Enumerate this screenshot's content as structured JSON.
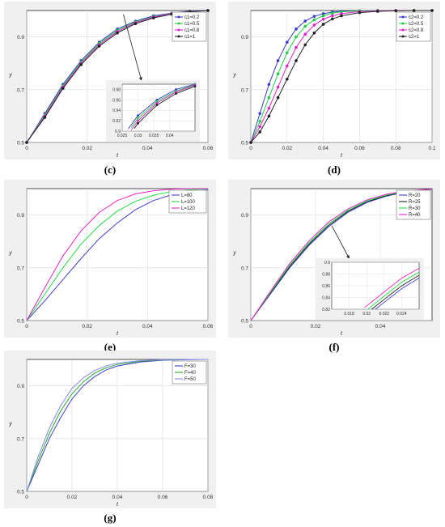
{
  "panels": [
    {
      "id": "c",
      "caption": "(c)",
      "chart_data": {
        "type": "line",
        "xlabel": "t",
        "ylabel": "y",
        "xlim": [
          0,
          0.06
        ],
        "ylim": [
          0.5,
          1.0
        ],
        "xticks": [
          "0",
          "0.02",
          "0.04",
          "0.06"
        ],
        "yticks": [
          "0.5",
          "0.7",
          "0.9"
        ],
        "grid": true,
        "legend_position": "top-right",
        "markers": true,
        "series": [
          {
            "name": "c1=0.2",
            "color": "#3a3acc",
            "x": [
              0,
              0.006,
              0.012,
              0.018,
              0.024,
              0.03,
              0.036,
              0.042,
              0.048,
              0.054,
              0.06
            ],
            "y": [
              0.5,
              0.61,
              0.72,
              0.81,
              0.88,
              0.93,
              0.96,
              0.98,
              0.99,
              0.998,
              1.0
            ]
          },
          {
            "name": "c1=0.5",
            "color": "#22cc44",
            "x": [
              0,
              0.006,
              0.012,
              0.018,
              0.024,
              0.03,
              0.036,
              0.042,
              0.048,
              0.054,
              0.06
            ],
            "y": [
              0.5,
              0.605,
              0.715,
              0.805,
              0.875,
              0.925,
              0.957,
              0.977,
              0.989,
              0.997,
              1.0
            ]
          },
          {
            "name": "c1=0.8",
            "color": "#dd22cc",
            "x": [
              0,
              0.006,
              0.012,
              0.018,
              0.024,
              0.03,
              0.036,
              0.042,
              0.048,
              0.054,
              0.06
            ],
            "y": [
              0.5,
              0.6,
              0.71,
              0.8,
              0.87,
              0.92,
              0.954,
              0.975,
              0.988,
              0.996,
              1.0
            ]
          },
          {
            "name": "c1=1",
            "color": "#222222",
            "x": [
              0,
              0.006,
              0.012,
              0.018,
              0.024,
              0.03,
              0.036,
              0.042,
              0.048,
              0.054,
              0.06
            ],
            "y": [
              0.5,
              0.595,
              0.705,
              0.795,
              0.865,
              0.915,
              0.95,
              0.972,
              0.986,
              0.995,
              1.0
            ]
          }
        ],
        "inset": {
          "xlim": [
            0.025,
            0.048
          ],
          "ylim": [
            0.9,
            0.99
          ],
          "xticks": [
            "0.025",
            "0.03",
            "0.035",
            "0.04"
          ],
          "yticks": [
            "0.9",
            "0.92",
            "0.94",
            "0.96",
            "0.98"
          ]
        }
      }
    },
    {
      "id": "d",
      "caption": "(d)",
      "chart_data": {
        "type": "line",
        "xlabel": "t",
        "ylabel": "y",
        "xlim": [
          0,
          0.1
        ],
        "ylim": [
          0.5,
          1.0
        ],
        "xticks": [
          "0",
          "0.02",
          "0.04",
          "0.06",
          "0.08",
          "0.1"
        ],
        "yticks": [
          "0.5",
          "0.7",
          "0.9"
        ],
        "grid": true,
        "legend_position": "top-right",
        "markers": true,
        "series": [
          {
            "name": "c2=0.2",
            "color": "#3a3acc",
            "x": [
              0,
              0.005,
              0.01,
              0.015,
              0.02,
              0.025,
              0.03,
              0.035,
              0.04,
              0.045,
              0.05,
              0.06,
              0.07,
              0.08,
              0.09,
              0.1
            ],
            "y": [
              0.5,
              0.61,
              0.72,
              0.81,
              0.88,
              0.93,
              0.96,
              0.978,
              0.988,
              0.994,
              0.997,
              0.999,
              1.0,
              1.0,
              1.0,
              1.0
            ]
          },
          {
            "name": "c2=0.5",
            "color": "#22cc44",
            "x": [
              0,
              0.005,
              0.01,
              0.015,
              0.02,
              0.025,
              0.03,
              0.035,
              0.04,
              0.045,
              0.05,
              0.06,
              0.07,
              0.08,
              0.09,
              0.1
            ],
            "y": [
              0.5,
              0.58,
              0.67,
              0.76,
              0.84,
              0.9,
              0.94,
              0.965,
              0.98,
              0.99,
              0.995,
              0.999,
              1.0,
              1.0,
              1.0,
              1.0
            ]
          },
          {
            "name": "c2=0.8",
            "color": "#dd22cc",
            "x": [
              0,
              0.005,
              0.01,
              0.015,
              0.02,
              0.025,
              0.03,
              0.035,
              0.04,
              0.045,
              0.05,
              0.06,
              0.07,
              0.08,
              0.09,
              0.1
            ],
            "y": [
              0.5,
              0.56,
              0.63,
              0.71,
              0.79,
              0.86,
              0.91,
              0.945,
              0.967,
              0.98,
              0.988,
              0.996,
              0.999,
              1.0,
              1.0,
              1.0
            ]
          },
          {
            "name": "c2=1",
            "color": "#222222",
            "x": [
              0,
              0.005,
              0.01,
              0.015,
              0.02,
              0.025,
              0.03,
              0.035,
              0.04,
              0.045,
              0.05,
              0.06,
              0.07,
              0.08,
              0.09,
              0.1
            ],
            "y": [
              0.5,
              0.54,
              0.6,
              0.67,
              0.74,
              0.81,
              0.87,
              0.915,
              0.948,
              0.968,
              0.98,
              0.992,
              0.997,
              0.999,
              1.0,
              1.0
            ]
          }
        ]
      }
    },
    {
      "id": "e",
      "caption": "(e)",
      "chart_data": {
        "type": "line",
        "xlabel": "t",
        "ylabel": "y",
        "xlim": [
          0,
          0.06
        ],
        "ylim": [
          0.5,
          1.0
        ],
        "xticks": [
          "0",
          "0.02",
          "0.04",
          "0.06"
        ],
        "yticks": [
          "0.5",
          "0.7",
          "0.9"
        ],
        "grid": true,
        "legend_position": "top-right",
        "markers": false,
        "series": [
          {
            "name": "L=80",
            "color": "#4040cc",
            "x": [
              0,
              0.006,
              0.012,
              0.018,
              0.024,
              0.03,
              0.036,
              0.042,
              0.048,
              0.054,
              0.06
            ],
            "y": [
              0.5,
              0.575,
              0.655,
              0.735,
              0.81,
              0.87,
              0.92,
              0.955,
              0.977,
              0.99,
              0.995
            ]
          },
          {
            "name": "L=100",
            "color": "#22dd44",
            "x": [
              0,
              0.006,
              0.012,
              0.018,
              0.024,
              0.03,
              0.036,
              0.042,
              0.048,
              0.054,
              0.06
            ],
            "y": [
              0.5,
              0.6,
              0.7,
              0.79,
              0.86,
              0.915,
              0.952,
              0.975,
              0.989,
              0.996,
              0.999
            ]
          },
          {
            "name": "L=120",
            "color": "#ee22cc",
            "x": [
              0,
              0.006,
              0.012,
              0.018,
              0.024,
              0.03,
              0.036,
              0.042,
              0.048,
              0.054,
              0.06
            ],
            "y": [
              0.5,
              0.625,
              0.745,
              0.84,
              0.91,
              0.955,
              0.98,
              0.992,
              0.998,
              1.0,
              1.0
            ]
          }
        ]
      }
    },
    {
      "id": "f",
      "caption": "(f)",
      "chart_data": {
        "type": "line",
        "xlabel": "t",
        "ylabel": "y",
        "xlim": [
          0,
          0.056
        ],
        "ylim": [
          0.5,
          1.0
        ],
        "xticks": [
          "0",
          "0.02",
          "0.04"
        ],
        "yticks": [
          "0.5",
          "0.7",
          "0.9"
        ],
        "grid": true,
        "legend_position": "top-right",
        "markers": false,
        "series": [
          {
            "name": "R=20",
            "color": "#4040cc",
            "x": [
              0,
              0.006,
              0.012,
              0.018,
              0.024,
              0.03,
              0.036,
              0.042,
              0.048,
              0.056
            ],
            "y": [
              0.5,
              0.6,
              0.7,
              0.785,
              0.855,
              0.91,
              0.948,
              0.972,
              0.987,
              0.998
            ]
          },
          {
            "name": "R=25",
            "color": "#222222",
            "x": [
              0,
              0.006,
              0.012,
              0.018,
              0.024,
              0.03,
              0.036,
              0.042,
              0.048,
              0.056
            ],
            "y": [
              0.5,
              0.603,
              0.705,
              0.79,
              0.86,
              0.914,
              0.951,
              0.974,
              0.988,
              0.998
            ]
          },
          {
            "name": "R=30",
            "color": "#22dd44",
            "x": [
              0,
              0.006,
              0.012,
              0.018,
              0.024,
              0.03,
              0.036,
              0.042,
              0.048,
              0.056
            ],
            "y": [
              0.5,
              0.606,
              0.71,
              0.795,
              0.866,
              0.918,
              0.954,
              0.976,
              0.989,
              0.999
            ]
          },
          {
            "name": "R=40",
            "color": "#ee22cc",
            "x": [
              0,
              0.006,
              0.012,
              0.018,
              0.024,
              0.03,
              0.036,
              0.042,
              0.048,
              0.056
            ],
            "y": [
              0.5,
              0.61,
              0.716,
              0.802,
              0.873,
              0.923,
              0.958,
              0.979,
              0.991,
              0.999
            ]
          }
        ],
        "inset": {
          "xlim": [
            0.016,
            0.026
          ],
          "ylim": [
            0.82,
            0.9
          ],
          "xticks": [
            "0.018",
            "0.02",
            "0.022",
            "0.024"
          ],
          "yticks": [
            "0.82",
            "0.84",
            "0.86",
            "0.88",
            "0.9"
          ]
        }
      }
    },
    {
      "id": "g",
      "caption": "(g)",
      "chart_data": {
        "type": "line",
        "xlabel": "t",
        "ylabel": "y",
        "xlim": [
          0,
          0.08
        ],
        "ylim": [
          0.5,
          1.0
        ],
        "xticks": [
          "0",
          "0.02",
          "0.04",
          "0.06",
          "0.08"
        ],
        "yticks": [
          "0.5",
          "0.7",
          "0.9"
        ],
        "grid": true,
        "legend_position": "top-right",
        "markers": false,
        "series": [
          {
            "name": "F=30",
            "color": "#4040cc",
            "x": [
              0,
              0.005,
              0.01,
              0.015,
              0.02,
              0.025,
              0.03,
              0.035,
              0.04,
              0.05,
              0.06,
              0.07,
              0.08
            ],
            "y": [
              0.5,
              0.6,
              0.7,
              0.78,
              0.85,
              0.9,
              0.935,
              0.96,
              0.975,
              0.99,
              0.997,
              0.999,
              1.0
            ]
          },
          {
            "name": "F=40",
            "color": "#22aa22",
            "x": [
              0,
              0.005,
              0.01,
              0.015,
              0.02,
              0.025,
              0.03,
              0.035,
              0.04,
              0.05,
              0.06,
              0.07,
              0.08
            ],
            "y": [
              0.5,
              0.615,
              0.72,
              0.805,
              0.87,
              0.915,
              0.948,
              0.968,
              0.981,
              0.993,
              0.998,
              1.0,
              1.0
            ]
          },
          {
            "name": "F=50",
            "color": "#8888ee",
            "x": [
              0,
              0.005,
              0.01,
              0.015,
              0.02,
              0.025,
              0.03,
              0.035,
              0.04,
              0.05,
              0.06,
              0.07,
              0.08
            ],
            "y": [
              0.5,
              0.63,
              0.74,
              0.825,
              0.89,
              0.93,
              0.958,
              0.975,
              0.986,
              0.995,
              0.999,
              1.0,
              1.0
            ]
          }
        ]
      }
    }
  ]
}
